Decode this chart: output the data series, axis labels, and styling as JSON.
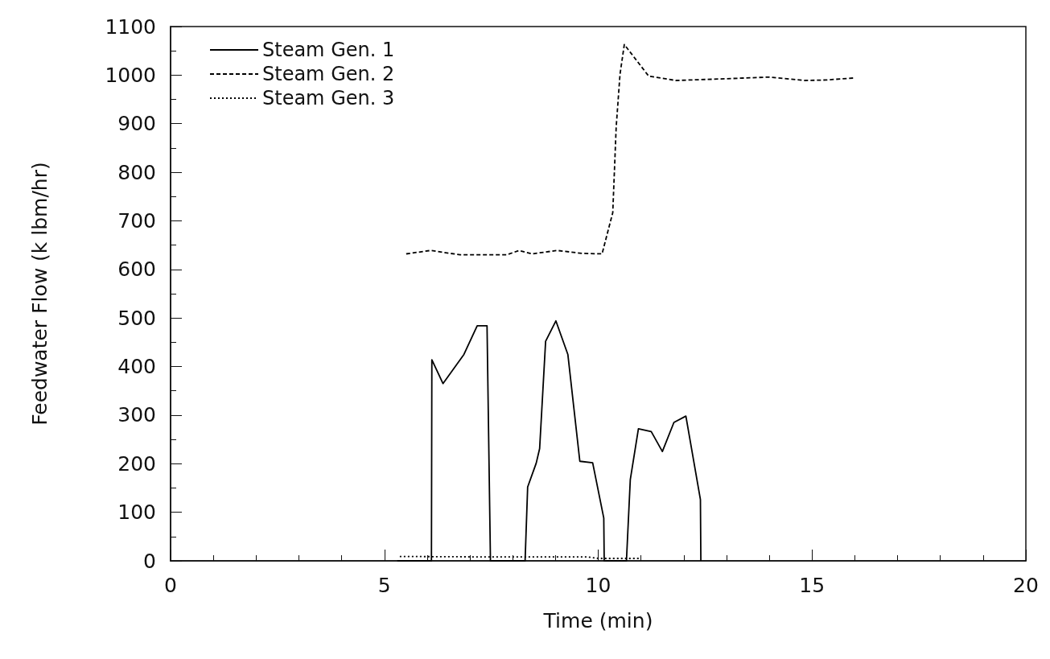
{
  "chart_data": {
    "type": "line",
    "xlabel": "Time (min)",
    "ylabel": "Feedwater Flow (k lbm/hr)",
    "xlim": [
      0,
      20
    ],
    "xticks": [
      0,
      5,
      10,
      15,
      20
    ],
    "ylim": [
      0,
      1100
    ],
    "yticks": [
      0,
      100,
      200,
      300,
      400,
      500,
      600,
      700,
      800,
      900,
      1000,
      1100
    ],
    "grid": false,
    "legend": "top left",
    "marker": "none",
    "series": [
      {
        "name": "Steam Gen. 1",
        "color": "#000000",
        "line_style": "solid",
        "x": [
          5.3,
          6.1,
          6.11,
          6.37,
          6.86,
          7.17,
          7.4,
          7.48,
          8.29,
          8.35,
          8.55,
          8.63,
          8.77,
          9.01,
          9.29,
          9.57,
          9.87,
          10.13,
          10.14,
          10.66,
          10.75,
          10.94,
          11.24,
          11.5,
          11.77,
          12.05,
          12.39,
          12.4
        ],
        "values": [
          0,
          0,
          414,
          365,
          425,
          484,
          484,
          0,
          0,
          152,
          201,
          231,
          452,
          494,
          425,
          205,
          202,
          88,
          0,
          0,
          167,
          272,
          266,
          225,
          285,
          298,
          126,
          0
        ]
      },
      {
        "name": "Steam Gen. 2",
        "color": "#000000",
        "line_style": "dashed",
        "x": [
          5.51,
          6.08,
          6.77,
          7.86,
          8.15,
          8.45,
          9.04,
          9.62,
          10.09,
          10.34,
          10.42,
          10.51,
          10.61,
          11.18,
          11.81,
          12.82,
          13.99,
          14.83,
          15.33,
          15.96
        ],
        "values": [
          632,
          639,
          630,
          630,
          639,
          632,
          639,
          633,
          632,
          717,
          893,
          1002,
          1063,
          998,
          989,
          992,
          996,
          989,
          990,
          994
        ]
      },
      {
        "name": "Steam Gen. 3",
        "color": "#000000",
        "line_style": "dotted",
        "x": [
          5.36,
          7.5,
          9.75,
          10.0,
          10.95
        ],
        "values": [
          9,
          8,
          8,
          5,
          5
        ]
      }
    ]
  }
}
